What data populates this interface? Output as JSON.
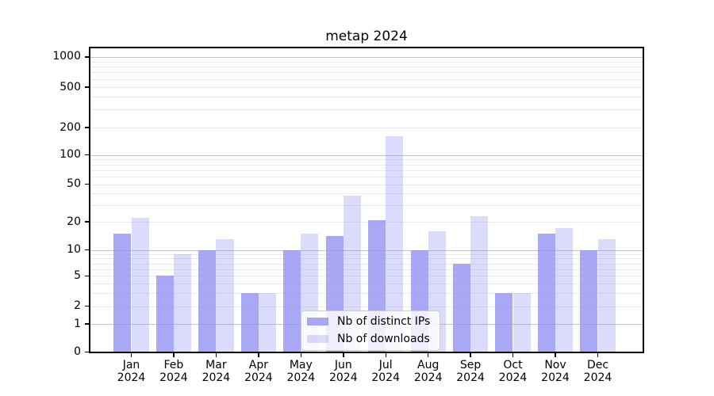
{
  "chart_data": {
    "type": "bar",
    "title": "metap 2024",
    "categories": [
      "Jan 2024",
      "Feb 2024",
      "Mar 2024",
      "Apr 2024",
      "May 2024",
      "Jun 2024",
      "Jul 2024",
      "Aug 2024",
      "Sep 2024",
      "Oct 2024",
      "Nov 2024",
      "Dec 2024"
    ],
    "series": [
      {
        "name": "Nb of distinct IPs",
        "color": "rgba(143,143,242,0.78)",
        "values": [
          15,
          5,
          10,
          3,
          10,
          14,
          21,
          10,
          7,
          3,
          15,
          10
        ]
      },
      {
        "name": "Nb of downloads",
        "color": "rgba(143,143,242,0.32)",
        "values": [
          22,
          9,
          13,
          3,
          15,
          38,
          160,
          16,
          23,
          3,
          17,
          13
        ]
      }
    ],
    "xlabel": "",
    "ylabel": "",
    "yscale": "symlog",
    "yticks": [
      0,
      1,
      2,
      5,
      10,
      20,
      50,
      100,
      200,
      500,
      1000
    ],
    "ylim": [
      0,
      1270
    ],
    "grid": true,
    "legend_position": "lower-center",
    "colors": {
      "axis": "#000000",
      "gridline_major": "#c3c3c3",
      "gridline_minor": "#ebebeb",
      "background": "#ffffff",
      "text": "#000000"
    }
  }
}
